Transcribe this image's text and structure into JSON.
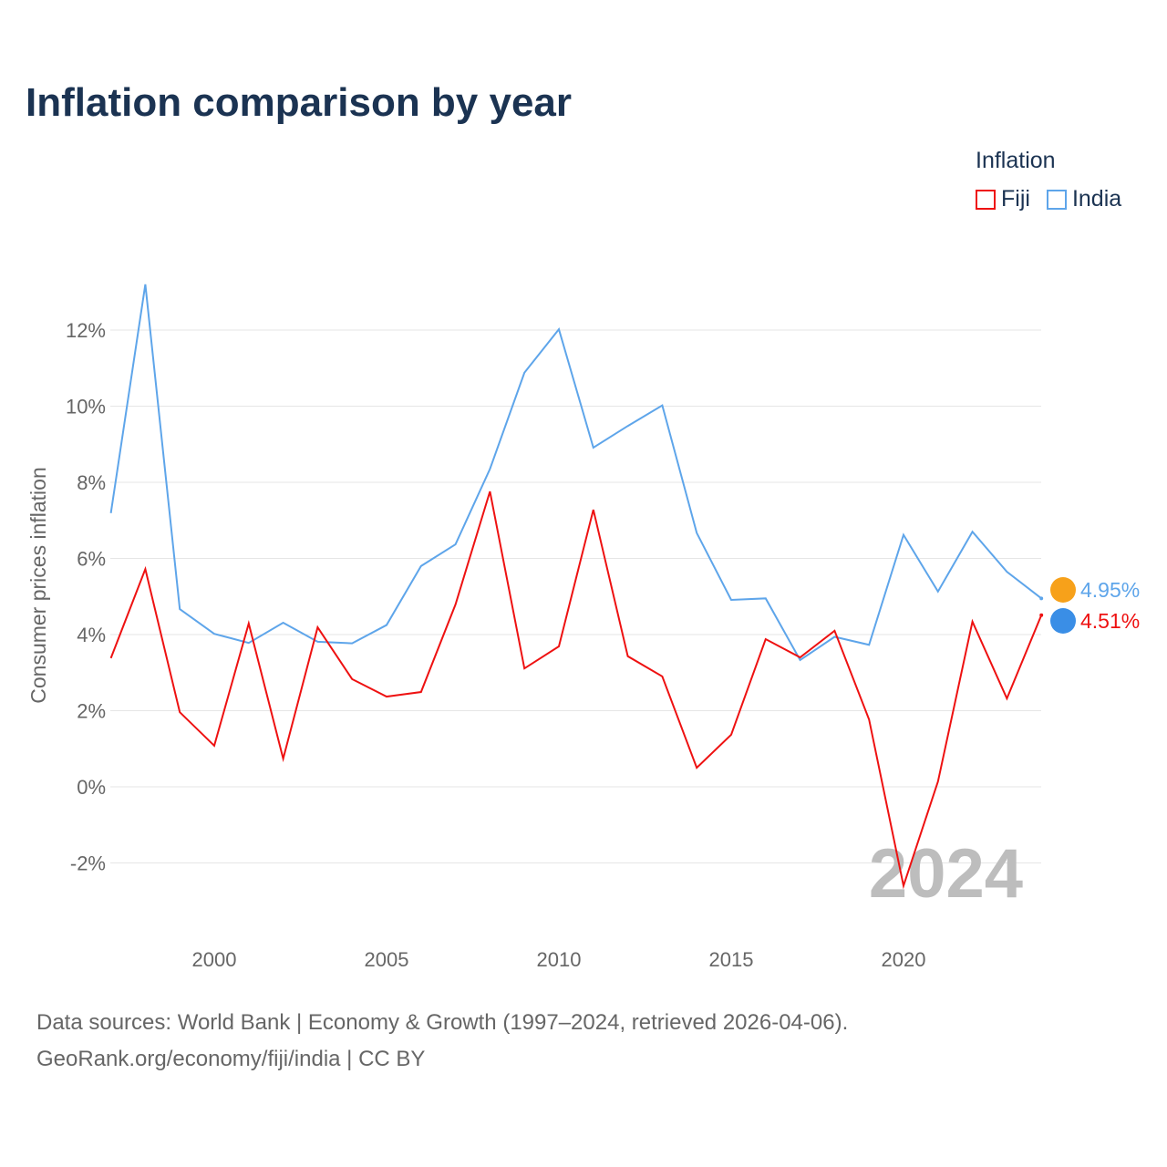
{
  "title": "Inflation comparison by year",
  "legend": {
    "title": "Inflation",
    "items": [
      {
        "name": "Fiji",
        "color": "#ee1111"
      },
      {
        "name": "India",
        "color": "#5ea5ea"
      }
    ]
  },
  "source_line1": "Data sources: World Bank | Economy & Growth (1997–2024, retrieved 2026-04-06).",
  "source_line2": "GeoRank.org/economy/fiji/india | CC BY",
  "chart_data": {
    "type": "line",
    "title": "Inflation comparison by year",
    "xlabel": "",
    "ylabel": "Consumer prices inflation",
    "xlim": [
      1997,
      2024
    ],
    "ylim": [
      -3.5,
      13.5
    ],
    "xticks": [
      2000,
      2005,
      2010,
      2015,
      2020
    ],
    "yticks": [
      -2,
      0,
      2,
      4,
      6,
      8,
      10,
      12
    ],
    "ytick_labels": [
      "-2%",
      "0%",
      "2%",
      "4%",
      "6%",
      "8%",
      "10%",
      "12%"
    ],
    "watermark": "2024",
    "x": [
      1997,
      1998,
      1999,
      2000,
      2001,
      2002,
      2003,
      2004,
      2005,
      2006,
      2007,
      2008,
      2009,
      2010,
      2011,
      2012,
      2013,
      2014,
      2015,
      2016,
      2017,
      2018,
      2019,
      2020,
      2021,
      2022,
      2023,
      2024
    ],
    "series": [
      {
        "name": "India",
        "color": "#5ea5ea",
        "end_label": "4.95%",
        "values": [
          7.19,
          13.2,
          4.67,
          4.02,
          3.78,
          4.31,
          3.81,
          3.77,
          4.25,
          5.8,
          6.37,
          8.35,
          10.88,
          12.02,
          8.91,
          9.48,
          10.02,
          6.67,
          4.91,
          4.95,
          3.33,
          3.94,
          3.73,
          6.62,
          5.13,
          6.7,
          5.65,
          4.95
        ]
      },
      {
        "name": "Fiji",
        "color": "#ee1111",
        "end_label": "4.51%",
        "values": [
          3.38,
          5.72,
          1.96,
          1.08,
          4.29,
          0.74,
          4.19,
          2.83,
          2.37,
          2.49,
          4.79,
          7.76,
          3.11,
          3.69,
          7.28,
          3.43,
          2.9,
          0.5,
          1.37,
          3.88,
          3.4,
          4.1,
          1.77,
          -2.6,
          0.14,
          4.34,
          2.32,
          4.51
        ]
      }
    ]
  }
}
